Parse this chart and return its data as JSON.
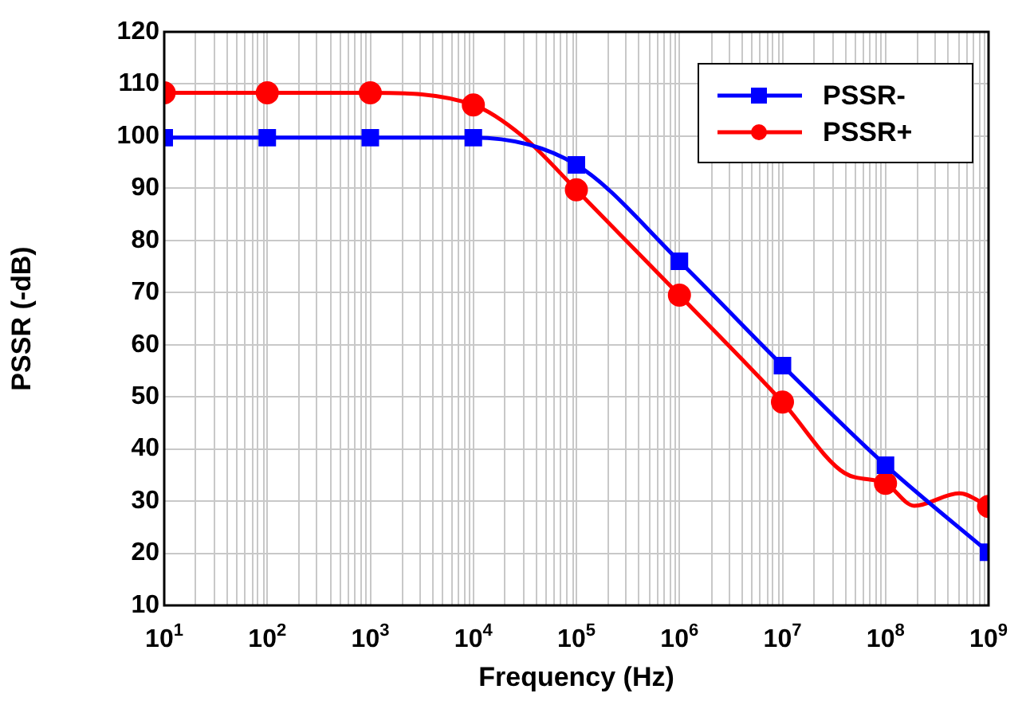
{
  "chart_data": {
    "type": "line",
    "xlabel": "Frequency (Hz)",
    "ylabel": "PSSR (-dB)",
    "log": "x",
    "xlim": [
      10,
      1000000000
    ],
    "xticks": [
      {
        "value": 10,
        "label": "10$^{1}$"
      },
      {
        "value": 100,
        "label": "10$^{2}$"
      },
      {
        "value": 1000,
        "label": "10$^{3}$"
      },
      {
        "value": 10000,
        "label": "10$^{4}$"
      },
      {
        "value": 100000,
        "label": "10$^{5}$"
      },
      {
        "value": 1000000,
        "label": "10$^{6}$"
      },
      {
        "value": 10000000,
        "label": "10$^{7}$"
      },
      {
        "value": 100000000,
        "label": "10$^{8}$"
      },
      {
        "value": 1000000000,
        "label": "10$^{9}$"
      }
    ],
    "ylim": [
      10,
      120
    ],
    "yticks": [
      10,
      20,
      30,
      40,
      50,
      60,
      70,
      80,
      90,
      100,
      110,
      120
    ],
    "grid": true,
    "legend": "top right",
    "series": [
      {
        "name": "PSSR-",
        "color": "#0000ff",
        "marker": "square",
        "x": [
          10,
          100,
          1000,
          10000,
          100000,
          1000000,
          10000000,
          100000000,
          1000000000
        ],
        "values": [
          99.7,
          99.7,
          99.7,
          99.7,
          94.5,
          76,
          56,
          36.9,
          20.2
        ]
      },
      {
        "name": "PSSR+",
        "color": "#ff0000",
        "marker": "circle",
        "x": [
          10,
          100,
          1000,
          10000,
          30000,
          100000,
          1000000,
          10000000,
          40000000,
          100000000,
          190000000,
          520000000,
          1000000000
        ],
        "values": [
          108.3,
          108.3,
          108.3,
          106,
          100,
          89.7,
          69.5,
          49,
          35.4,
          33.4,
          29.1,
          31.5,
          29
        ]
      }
    ]
  }
}
